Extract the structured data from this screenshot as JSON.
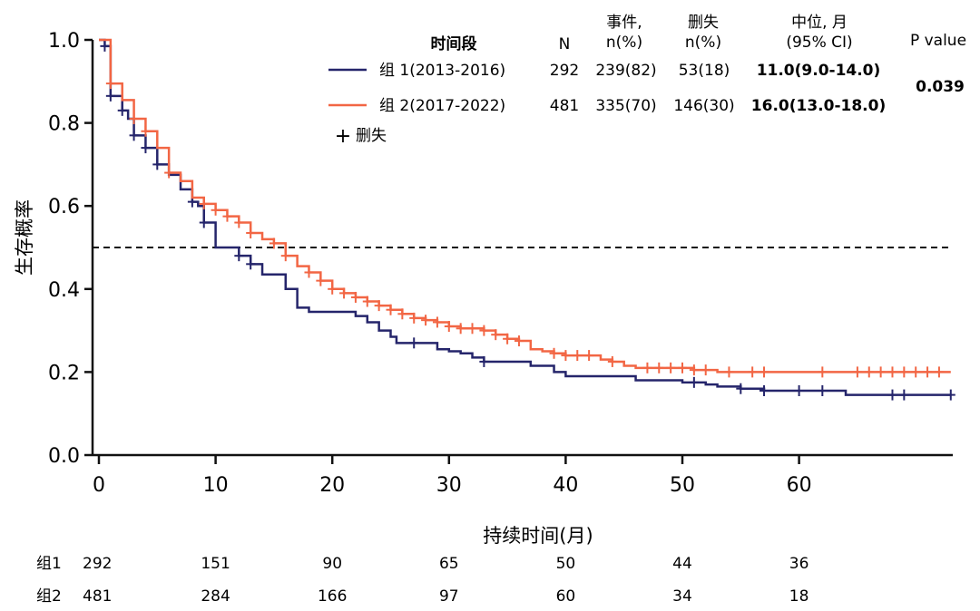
{
  "chart_data": {
    "type": "line",
    "subtype": "kaplan-meier",
    "xlabel": "持续时间(月)",
    "ylabel": "生存概率",
    "xlim": [
      0,
      73
    ],
    "ylim": [
      0,
      1.0
    ],
    "xticks": [
      0,
      10,
      20,
      30,
      40,
      50,
      60
    ],
    "yticks": [
      "0.0",
      "0.2",
      "0.4",
      "0.6",
      "0.8",
      "1.0"
    ],
    "reference_line": {
      "y": 0.5,
      "style": "dashed"
    },
    "legend": {
      "headers": {
        "period": "时间段",
        "n": "N",
        "events": "事件,\nn(%)",
        "censored": "删失\nn(%)",
        "median": "中位, 月\n(95% CI)",
        "pvalue": "P value"
      },
      "pvalue": "0.039",
      "censor_symbol": "+",
      "censor_label": "删失"
    },
    "series": [
      {
        "name": "组 1(2013-2016)",
        "color": "#25256b",
        "n": "292",
        "events": "239(82)",
        "censored": "53(18)",
        "median": "11.0(9.0-14.0)",
        "steps": [
          [
            0,
            1.0
          ],
          [
            0.5,
            0.985
          ],
          [
            1,
            0.865
          ],
          [
            2,
            0.83
          ],
          [
            2.5,
            0.81
          ],
          [
            3,
            0.77
          ],
          [
            4,
            0.74
          ],
          [
            5,
            0.7
          ],
          [
            6,
            0.675
          ],
          [
            7,
            0.64
          ],
          [
            8,
            0.61
          ],
          [
            8.5,
            0.6
          ],
          [
            9,
            0.56
          ],
          [
            10,
            0.5
          ],
          [
            12,
            0.48
          ],
          [
            13,
            0.46
          ],
          [
            14,
            0.435
          ],
          [
            16,
            0.4
          ],
          [
            17,
            0.355
          ],
          [
            18,
            0.345
          ],
          [
            22,
            0.335
          ],
          [
            23,
            0.32
          ],
          [
            24,
            0.3
          ],
          [
            25,
            0.285
          ],
          [
            25.5,
            0.27
          ],
          [
            29,
            0.255
          ],
          [
            30,
            0.25
          ],
          [
            31,
            0.245
          ],
          [
            32,
            0.235
          ],
          [
            33,
            0.225
          ],
          [
            37,
            0.215
          ],
          [
            39,
            0.2
          ],
          [
            40,
            0.19
          ],
          [
            46,
            0.18
          ],
          [
            50,
            0.175
          ],
          [
            52,
            0.17
          ],
          [
            53,
            0.165
          ],
          [
            55,
            0.16
          ],
          [
            57,
            0.155
          ],
          [
            64,
            0.145
          ],
          [
            73,
            0.145
          ]
        ],
        "censor_times": [
          0.5,
          1,
          2,
          3,
          4,
          5,
          8,
          9,
          12,
          13,
          27,
          33,
          51,
          55,
          57,
          60,
          62,
          68,
          69,
          73
        ]
      },
      {
        "name": "组 2(2017-2022)",
        "color": "#f26644",
        "n": "481",
        "events": "335(70)",
        "censored": "146(30)",
        "median": "16.0(13.0-18.0)",
        "steps": [
          [
            0,
            1.0
          ],
          [
            1,
            0.895
          ],
          [
            2,
            0.855
          ],
          [
            3,
            0.81
          ],
          [
            4,
            0.78
          ],
          [
            5,
            0.74
          ],
          [
            6,
            0.68
          ],
          [
            7,
            0.66
          ],
          [
            8,
            0.62
          ],
          [
            9,
            0.605
          ],
          [
            10,
            0.59
          ],
          [
            11,
            0.575
          ],
          [
            12,
            0.56
          ],
          [
            13,
            0.535
          ],
          [
            14,
            0.52
          ],
          [
            15,
            0.51
          ],
          [
            16,
            0.48
          ],
          [
            17,
            0.455
          ],
          [
            18,
            0.44
          ],
          [
            19,
            0.42
          ],
          [
            20,
            0.4
          ],
          [
            21,
            0.39
          ],
          [
            22,
            0.38
          ],
          [
            23,
            0.37
          ],
          [
            24,
            0.36
          ],
          [
            25,
            0.35
          ],
          [
            26,
            0.34
          ],
          [
            27,
            0.33
          ],
          [
            28,
            0.325
          ],
          [
            29,
            0.32
          ],
          [
            30,
            0.31
          ],
          [
            31,
            0.305
          ],
          [
            33,
            0.3
          ],
          [
            34,
            0.29
          ],
          [
            35,
            0.28
          ],
          [
            36,
            0.275
          ],
          [
            37,
            0.255
          ],
          [
            38,
            0.25
          ],
          [
            39,
            0.245
          ],
          [
            40,
            0.24
          ],
          [
            43,
            0.23
          ],
          [
            44,
            0.225
          ],
          [
            45,
            0.215
          ],
          [
            46,
            0.21
          ],
          [
            51,
            0.205
          ],
          [
            53,
            0.2
          ],
          [
            73,
            0.2
          ]
        ],
        "censor_times": [
          1,
          3,
          4,
          6,
          9,
          10,
          11,
          12,
          13,
          15,
          16,
          18,
          19,
          20,
          21,
          22,
          23,
          24,
          25,
          26,
          27,
          28,
          29,
          30,
          31,
          32,
          33,
          34,
          35,
          36,
          39,
          40,
          41,
          42,
          44,
          47,
          48,
          49,
          50,
          51,
          52,
          54,
          56,
          57,
          62,
          65,
          66,
          67,
          68,
          69,
          70,
          71,
          72
        ]
      }
    ],
    "risk_table": {
      "row_labels": [
        "组1",
        "组2"
      ],
      "times": [
        0,
        10,
        20,
        30,
        40,
        50,
        60
      ],
      "rows": [
        [
          "292",
          "151",
          "90",
          "65",
          "50",
          "44",
          "36"
        ],
        [
          "481",
          "284",
          "166",
          "97",
          "60",
          "34",
          "18"
        ]
      ]
    }
  }
}
